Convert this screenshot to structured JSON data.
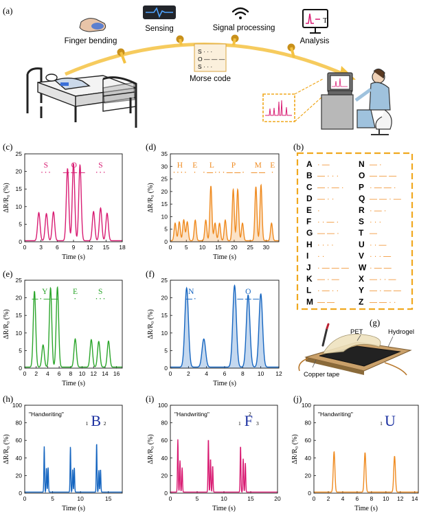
{
  "panel_labels": {
    "a": "(a)",
    "b": "(b)",
    "c": "(c)",
    "d": "(d)",
    "e": "(e)",
    "f": "(f)",
    "g": "(g)",
    "h": "(h)",
    "i": "(i)",
    "j": "(j)"
  },
  "scheme": {
    "finger_bending": "Finger bending",
    "sensing": "Sensing",
    "signal_processing": "Signal processing",
    "analysis": "Analysis",
    "morse_code": "Morse code",
    "morse_card": [
      "S · · ·",
      "O — — —",
      "S · · ·"
    ],
    "monitor_letter": "T"
  },
  "colors": {
    "pink": "#d81b72",
    "orange": "#ef8a1f",
    "green": "#2aa52a",
    "blue": "#1565c0",
    "gold": "#f4c242",
    "dashed": "#f0a81e"
  },
  "morse_table": {
    "left": [
      [
        "A",
        "· —"
      ],
      [
        "B",
        "— · · ·"
      ],
      [
        "C",
        "— · — ·"
      ],
      [
        "D",
        "— · ·"
      ],
      [
        "E",
        "·"
      ],
      [
        "F",
        "· · — ·"
      ],
      [
        "G",
        "— — ·"
      ],
      [
        "H",
        "· · · ·"
      ],
      [
        "I",
        "· ·"
      ],
      [
        "J",
        "· — — —"
      ],
      [
        "K",
        "— · —"
      ],
      [
        "L",
        "· — · ·"
      ],
      [
        "M",
        "— —"
      ]
    ],
    "right": [
      [
        "N",
        "— ·"
      ],
      [
        "O",
        "— — —"
      ],
      [
        "P",
        "· — — ·"
      ],
      [
        "Q",
        "— — · —"
      ],
      [
        "R",
        "· — ·"
      ],
      [
        "S",
        "· · ·"
      ],
      [
        "T",
        "—"
      ],
      [
        "U",
        "· · —"
      ],
      [
        "V",
        "· · · —"
      ],
      [
        "W",
        "· — —"
      ],
      [
        "X",
        "— · · —"
      ],
      [
        "Y",
        "— · — —"
      ],
      [
        "Z",
        "— — · ·"
      ]
    ]
  },
  "device_labels": {
    "pet": "PET",
    "hydrogel": "Hydrogel",
    "copper": "Copper tape"
  },
  "chart_data": [
    {
      "id": "c",
      "type": "line",
      "color": "#d81b72",
      "fill": false,
      "xlabel": "Time (s)",
      "ylabel": "ΔR/R₀ (%)",
      "xlim": [
        0,
        18
      ],
      "ylim": [
        0,
        25
      ],
      "xticks": [
        0,
        3,
        6,
        9,
        12,
        15,
        18
      ],
      "yticks": [
        0,
        5,
        10,
        15,
        20,
        25
      ],
      "peaks": [
        [
          2.6,
          8
        ],
        [
          4.0,
          7.7
        ],
        [
          5.3,
          8.2
        ],
        [
          7.9,
          20.5
        ],
        [
          9.0,
          22
        ],
        [
          10.2,
          21.5
        ],
        [
          12.7,
          8.3
        ],
        [
          14,
          9.3
        ],
        [
          15.2,
          7.8
        ]
      ],
      "width": 0.32,
      "letters": [
        {
          "text": "S",
          "x": 3.9,
          "code": "· · ·"
        },
        {
          "text": "O",
          "x": 9.1,
          "code": "— — —"
        },
        {
          "text": "S",
          "x": 14,
          "code": "· · ·"
        }
      ]
    },
    {
      "id": "d",
      "type": "line",
      "color": "#ef8a1f",
      "fill": true,
      "xlabel": "Time (s)",
      "ylabel": "ΔR/R₀ (%)",
      "xlim": [
        0,
        34
      ],
      "ylim": [
        0,
        35
      ],
      "xticks": [
        0,
        5,
        10,
        15,
        20,
        25,
        30
      ],
      "yticks": [
        0,
        5,
        10,
        15,
        20,
        25,
        30,
        35
      ],
      "peaks": [
        [
          1.5,
          7
        ],
        [
          2.8,
          7.5
        ],
        [
          4.2,
          8.3
        ],
        [
          5.3,
          7.5
        ],
        [
          7.8,
          8.2
        ],
        [
          11.1,
          8.2
        ],
        [
          12.7,
          21.8
        ],
        [
          14,
          7
        ],
        [
          15.4,
          7
        ],
        [
          17.2,
          8.2
        ],
        [
          19.7,
          20.4
        ],
        [
          21.1,
          20.4
        ],
        [
          22.6,
          7
        ],
        [
          26.8,
          21.5
        ],
        [
          28.4,
          22.2
        ],
        [
          31.7,
          7
        ]
      ],
      "width": 0.45,
      "letters": [
        {
          "text": "H",
          "x": 3,
          "code": "· · · ·"
        },
        {
          "text": "E",
          "x": 7.7,
          "code": "·"
        },
        {
          "text": "L",
          "x": 13,
          "code": "· — · ·"
        },
        {
          "text": "P",
          "x": 19.8,
          "code": "· — — ·"
        },
        {
          "text": "M",
          "x": 27.5,
          "code": "— —"
        },
        {
          "text": "E",
          "x": 32,
          "code": "·"
        }
      ]
    },
    {
      "id": "e",
      "type": "line",
      "color": "#2aa52a",
      "fill": false,
      "xlabel": "Time (s)",
      "ylabel": "ΔR/R₀ (%)",
      "xlim": [
        0,
        17
      ],
      "ylim": [
        0,
        25
      ],
      "xticks": [
        0,
        2,
        4,
        6,
        8,
        10,
        12,
        14,
        16
      ],
      "yticks": [
        0,
        5,
        10,
        15,
        20,
        25
      ],
      "peaks": [
        [
          1.7,
          21.6
        ],
        [
          3.2,
          6.3
        ],
        [
          4.5,
          22.5
        ],
        [
          5.7,
          22.7
        ],
        [
          8.8,
          8
        ],
        [
          11.6,
          7.8
        ],
        [
          12.9,
          7.3
        ],
        [
          14.6,
          7.4
        ]
      ],
      "width": 0.3,
      "letters": [
        {
          "text": "Y",
          "x": 3.5,
          "code": "— · — —"
        },
        {
          "text": "E",
          "x": 8.8,
          "code": "·"
        },
        {
          "text": "S",
          "x": 13.2,
          "code": "· · ·"
        }
      ]
    },
    {
      "id": "f",
      "type": "line",
      "color": "#1565c0",
      "fill": true,
      "xlabel": "Time (s)",
      "ylabel": "ΔR/R₀ (%)",
      "xlim": [
        0,
        12
      ],
      "ylim": [
        0,
        25
      ],
      "xticks": [
        0,
        2,
        4,
        6,
        8,
        10,
        12
      ],
      "yticks": [
        0,
        5,
        10,
        15,
        20,
        25
      ],
      "peaks": [
        [
          1.8,
          22.5
        ],
        [
          3.7,
          8
        ],
        [
          7.1,
          23.2
        ],
        [
          8.6,
          20.5
        ],
        [
          10,
          20.8
        ]
      ],
      "width": 0.28,
      "letters": [
        {
          "text": "N",
          "x": 2.3,
          "code": "— ·"
        },
        {
          "text": "O",
          "x": 8.6,
          "code": "— — —"
        }
      ]
    },
    {
      "id": "h",
      "type": "line",
      "color": "#1565c0",
      "fill": false,
      "xlabel": "Time (s)",
      "ylabel": "ΔR/R₀ (%)",
      "xlim": [
        0,
        17.5
      ],
      "ylim": [
        0,
        100
      ],
      "xticks": [
        0,
        5,
        10,
        15
      ],
      "yticks": [
        0,
        20,
        40,
        60,
        80,
        100
      ],
      "peaks": [
        [
          3.5,
          52
        ],
        [
          3.9,
          28
        ],
        [
          4.2,
          28
        ],
        [
          8.2,
          52
        ],
        [
          8.6,
          26
        ],
        [
          8.9,
          28
        ],
        [
          12.9,
          56
        ],
        [
          13.3,
          25
        ],
        [
          13.6,
          26
        ]
      ],
      "width": 0.09,
      "annotation": "\"Handwriting\"",
      "glyph": "B",
      "marks": [
        "1",
        "2"
      ]
    },
    {
      "id": "i",
      "type": "line",
      "color": "#d81b72",
      "fill": false,
      "xlabel": "Time (s)",
      "ylabel": "ΔR/R₀ (%)",
      "xlim": [
        0,
        20
      ],
      "ylim": [
        0,
        100
      ],
      "xticks": [
        0,
        5,
        10,
        15,
        20
      ],
      "yticks": [
        0,
        20,
        40,
        60,
        80,
        100
      ],
      "peaks": [
        [
          1.4,
          60
        ],
        [
          1.8,
          36
        ],
        [
          2.2,
          28
        ],
        [
          7.1,
          61
        ],
        [
          7.5,
          38
        ],
        [
          7.9,
          30
        ],
        [
          13.1,
          53
        ],
        [
          13.6,
          38
        ],
        [
          14.0,
          33
        ]
      ],
      "width": 0.1,
      "annotation": "\"Handwriting\"",
      "glyph": "F",
      "marks": [
        "1",
        "2",
        "3"
      ]
    },
    {
      "id": "j",
      "type": "line",
      "color": "#ef8a1f",
      "fill": false,
      "xlabel": "Time (s)",
      "ylabel": "ΔR/R₀ (%)",
      "xlim": [
        0,
        14.5
      ],
      "ylim": [
        0,
        100
      ],
      "xticks": [
        0,
        2,
        4,
        6,
        8,
        10,
        12,
        14
      ],
      "yticks": [
        0,
        20,
        40,
        60,
        80,
        100
      ],
      "peaks": [
        [
          2.8,
          46
        ],
        [
          7.1,
          45
        ],
        [
          11.2,
          41
        ]
      ],
      "width": 0.16,
      "annotation": "\"Handwriting\"",
      "glyph": "U",
      "marks": [
        "1"
      ]
    }
  ]
}
